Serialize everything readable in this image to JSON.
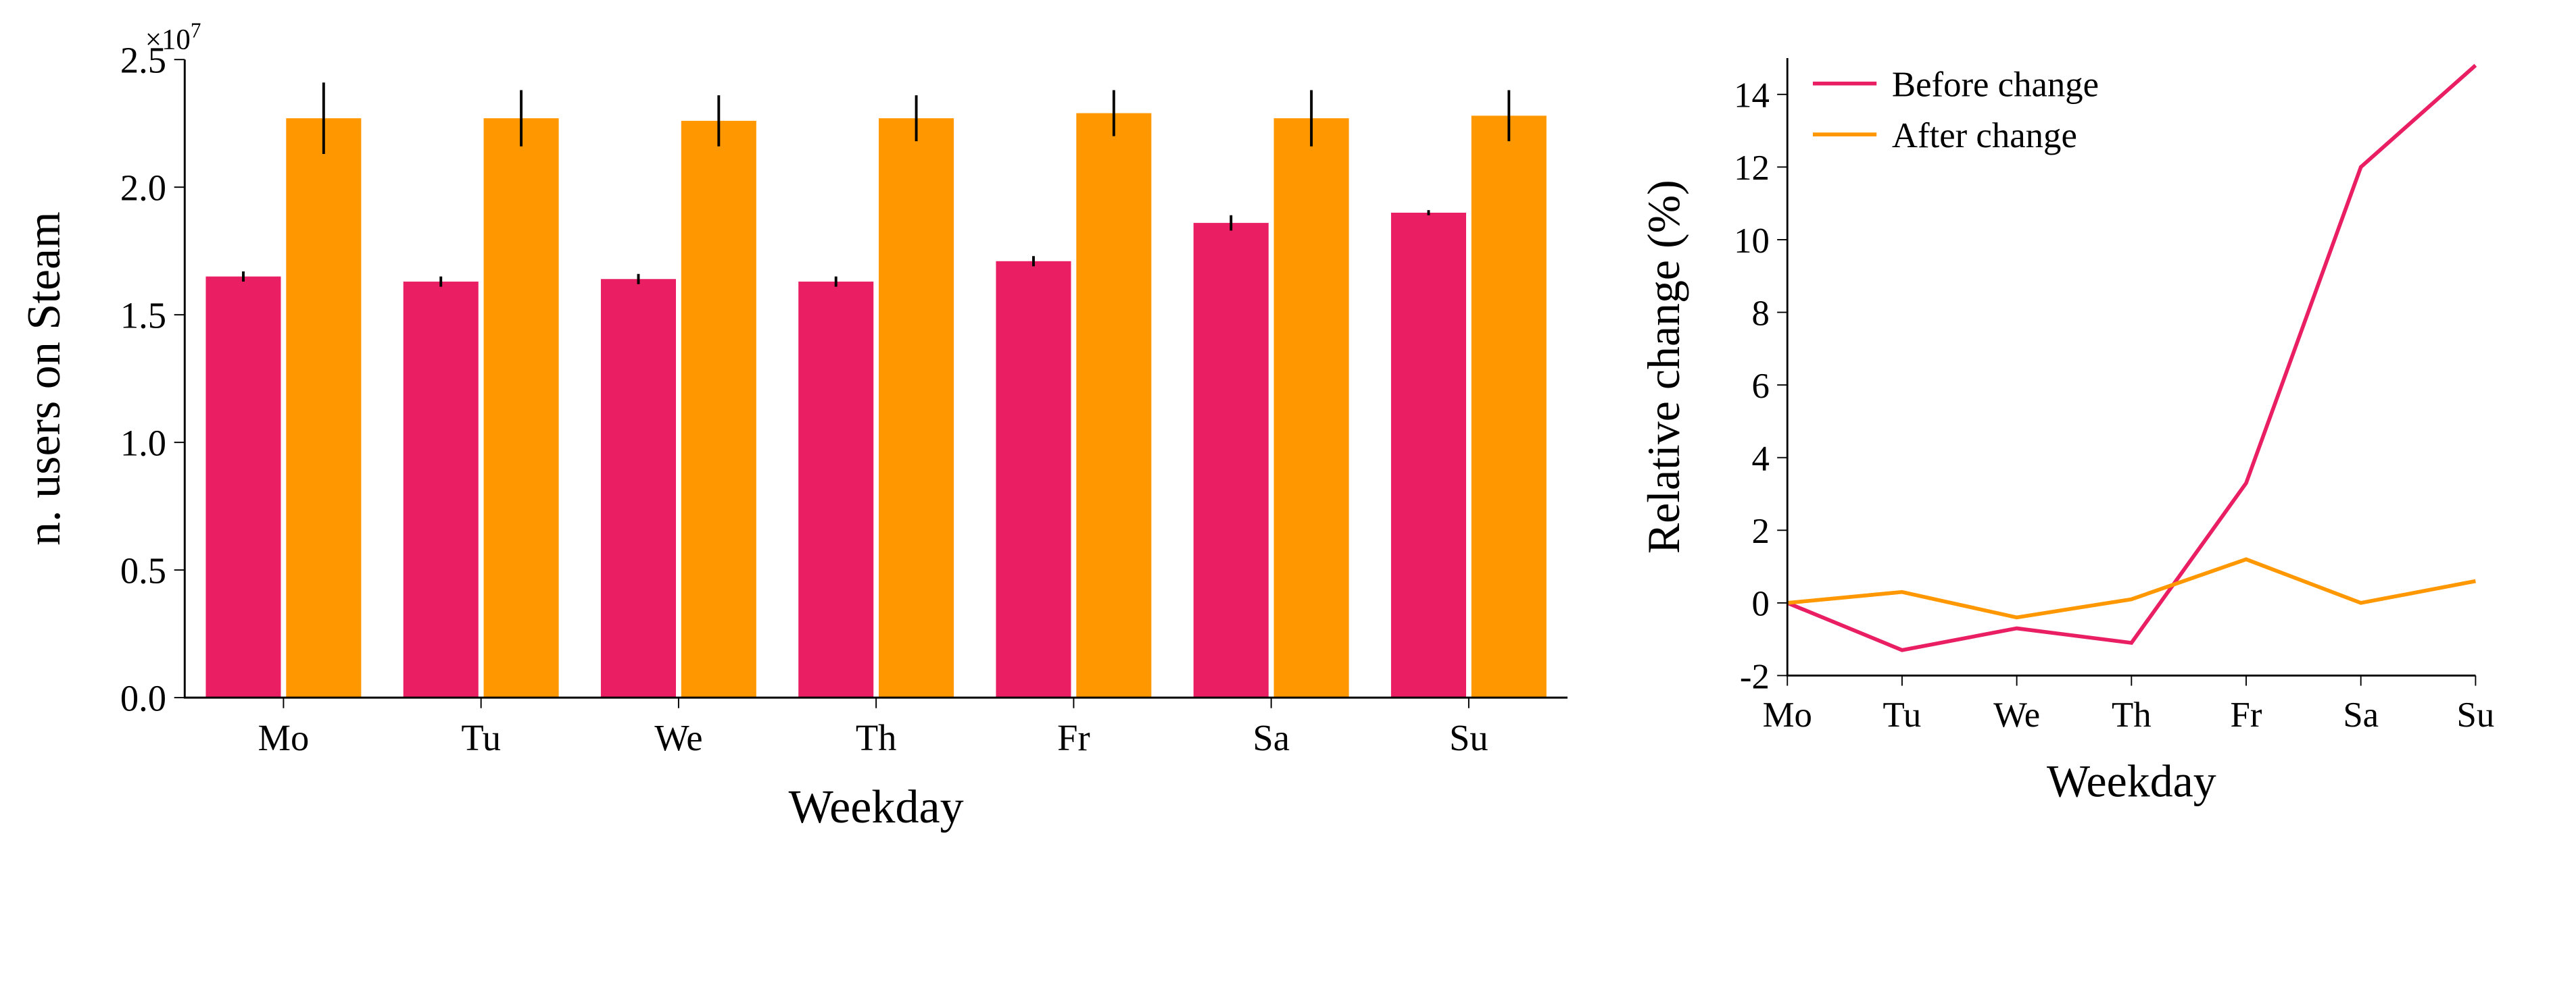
{
  "bar_chart": {
    "type": "bar",
    "categories": [
      "Mo",
      "Tu",
      "We",
      "Th",
      "Fr",
      "Sa",
      "Su"
    ],
    "series": [
      {
        "name": "before",
        "color": "#e91e63",
        "values": [
          1.65,
          1.63,
          1.64,
          1.63,
          1.71,
          1.86,
          1.9
        ],
        "errors": [
          0.02,
          0.02,
          0.02,
          0.02,
          0.02,
          0.03,
          0.01
        ]
      },
      {
        "name": "after",
        "color": "#ff9800",
        "values": [
          2.27,
          2.27,
          2.26,
          2.27,
          2.29,
          2.27,
          2.28
        ],
        "errors": [
          0.14,
          0.11,
          0.1,
          0.09,
          0.09,
          0.11,
          0.1
        ]
      }
    ],
    "ylabel": "n. users on Steam",
    "xlabel": "Weekday",
    "ylim": [
      0,
      2.5
    ],
    "ytick_step": 0.5,
    "exponent": "×10⁷",
    "exponent_raw": "×10",
    "exponent_sup": "7",
    "bar_width": 0.38,
    "background_color": "#ffffff",
    "label_fontsize": 36,
    "tick_fontsize": 28
  },
  "line_chart": {
    "type": "line",
    "categories": [
      "Mo",
      "Tu",
      "We",
      "Th",
      "Fr",
      "Sa",
      "Su"
    ],
    "series": [
      {
        "name": "before",
        "label": "Before change",
        "color": "#e91e63",
        "values": [
          0.0,
          -1.3,
          -0.7,
          -1.1,
          3.3,
          12.0,
          14.8
        ]
      },
      {
        "name": "after",
        "label": "After change",
        "color": "#ff9800",
        "values": [
          0.0,
          0.3,
          -0.4,
          0.1,
          1.2,
          0.0,
          0.6
        ]
      }
    ],
    "ylabel": "Relative change (%)",
    "xlabel": "Weekday",
    "ylim": [
      -2,
      15
    ],
    "ytick_step": 2,
    "background_color": "#ffffff",
    "label_fontsize": 36,
    "tick_fontsize": 28,
    "line_width": 3
  },
  "legend": {
    "items": [
      {
        "label": "Before change",
        "color": "#e91e63"
      },
      {
        "label": "After change",
        "color": "#ff9800"
      }
    ]
  }
}
